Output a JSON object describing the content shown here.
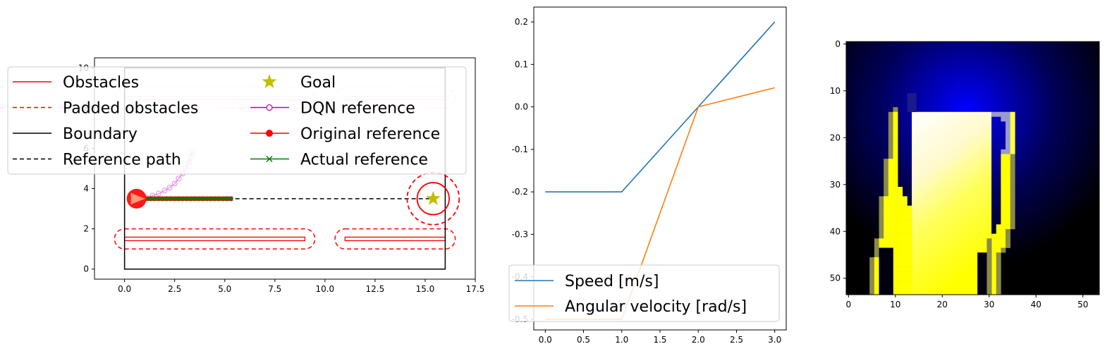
{
  "chart_data": [
    {
      "type": "line",
      "xlim": [
        -1.5,
        17.5
      ],
      "ylim": [
        -0.5,
        10.5
      ],
      "xticks": [
        "0.0",
        "2.5",
        "5.0",
        "7.5",
        "10.0",
        "12.5",
        "15.0",
        "17.5"
      ],
      "yticks": [
        "0",
        "2",
        "4",
        "6",
        "8",
        "10"
      ],
      "legend_loc": "upper-left",
      "boundary": {
        "xmin": 0,
        "xmax": 16,
        "ymin": 0,
        "ymax": 10
      },
      "obstacles": [
        {
          "x1": 0,
          "x2": 9,
          "y": 1.5
        },
        {
          "x1": 11,
          "x2": 16,
          "y": 1.5
        },
        {
          "x1": 0,
          "x2": 9,
          "y": 8.5
        },
        {
          "x1": 11,
          "x2": 16,
          "y": 8.5
        }
      ],
      "padding": 0.5,
      "reference_path": {
        "x": [
          0.6,
          15.4
        ],
        "y": [
          3.5,
          3.5
        ]
      },
      "goal": {
        "x": 15.4,
        "y": 3.5,
        "r_inner": 0.8,
        "r_outer": 1.3
      },
      "robot": {
        "x": 0.6,
        "y": 3.5
      },
      "dqn_reference": {
        "x": [
          1.1,
          1.4,
          1.7,
          2.0,
          2.25,
          2.5,
          2.7,
          2.9,
          3.05,
          3.2,
          3.3,
          3.4
        ],
        "y": [
          3.55,
          3.65,
          3.75,
          3.9,
          4.05,
          4.25,
          4.5,
          4.75,
          5.0,
          5.3,
          5.55,
          5.8
        ]
      },
      "original_reference": {
        "x_start": 1.1,
        "x_end": 5.4,
        "step": 0.2,
        "y": 3.5
      },
      "actual_reference": {
        "x_start": 1.1,
        "x_end": 5.4,
        "step": 0.2,
        "y": 3.5
      },
      "legend": [
        {
          "label": "Obstacles",
          "style": "solid",
          "color": "#ff0000",
          "marker": "none"
        },
        {
          "label": "Padded obstacles",
          "style": "dashed",
          "color": "#ff0000",
          "marker": "none"
        },
        {
          "label": "Boundary",
          "style": "solid",
          "color": "#000000",
          "marker": "none"
        },
        {
          "label": "Reference path",
          "style": "dashed",
          "color": "#000000",
          "marker": "none"
        },
        {
          "label": "Goal",
          "style": "none",
          "color": "#bfbf00",
          "marker": "star"
        },
        {
          "label": "DQN reference",
          "style": "solid",
          "color": "#bf00bf",
          "marker": "open-circle"
        },
        {
          "label": "Original reference",
          "style": "solid",
          "color": "#ff0000",
          "marker": "filled-circle"
        },
        {
          "label": "Actual reference",
          "style": "solid",
          "color": "#008000",
          "marker": "x"
        }
      ]
    },
    {
      "type": "line",
      "xlim": [
        -0.15,
        3.15
      ],
      "ylim": [
        -0.525,
        0.235
      ],
      "xticks": [
        "0.0",
        "0.5",
        "1.0",
        "1.5",
        "2.0",
        "2.5",
        "3.0"
      ],
      "yticks": [
        "0.2",
        "0.1",
        "0.0",
        "-0.1",
        "-0.2",
        "-0.3",
        "-0.4",
        "-0.5"
      ],
      "x": [
        0,
        1,
        2,
        3
      ],
      "legend_loc": "lower-left",
      "series": [
        {
          "name": "Speed [m/s]",
          "color": "#1f77b4",
          "values": [
            -0.2,
            -0.2,
            0.0,
            0.2
          ]
        },
        {
          "name": "Angular velocity [rad/s]",
          "color": "#ff7f0e",
          "values": [
            -0.5,
            -0.5,
            0.0,
            0.045
          ]
        }
      ]
    },
    {
      "type": "heatmap",
      "xlim": [
        -0.5,
        53.5
      ],
      "ylim": [
        53.5,
        -0.5
      ],
      "xticks": [
        "0",
        "10",
        "20",
        "30",
        "40",
        "50"
      ],
      "yticks": [
        "0",
        "10",
        "20",
        "30",
        "40",
        "50"
      ],
      "colors": {
        "background": "#000000",
        "glow": "#0000ff",
        "free": "#ffff00",
        "near": "#ffffff",
        "edge": "#8a8a4a"
      },
      "glow_center": {
        "x": 25,
        "y": 14
      },
      "center_block": {
        "x1": 14,
        "x2": 30,
        "y1": 15,
        "y2": 53
      },
      "left_arm": {
        "outer": [
          [
            0,
            9
          ],
          [
            5,
            9
          ],
          [
            10,
            8
          ],
          [
            25,
            7
          ],
          [
            33,
            6
          ],
          [
            45,
            5
          ]
        ],
        "inner_top": 14,
        "inner_x": 11
      },
      "right_arm": {
        "outer": [
          [
            0,
            35
          ],
          [
            10,
            35
          ],
          [
            20,
            36
          ],
          [
            30,
            36
          ],
          [
            40,
            37
          ]
        ],
        "inner_top": 15,
        "inner_x": 31
      }
    }
  ]
}
